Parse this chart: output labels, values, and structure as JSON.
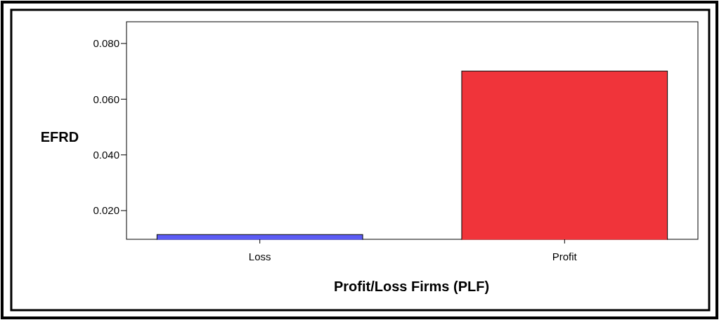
{
  "chart_data": {
    "type": "bar",
    "xlabel": "Profit/Loss Firms (PLF)",
    "ylabel": "EFRD",
    "categories": [
      "Loss",
      "Profit"
    ],
    "values": [
      0.0114,
      0.0701
    ],
    "colors": [
      "#5b5bf5",
      "#f0343a"
    ],
    "ylim": [
      0.0097,
      0.0878
    ],
    "yticks": [
      {
        "value": 0.02,
        "label": "0.020"
      },
      {
        "value": 0.04,
        "label": "0.040"
      },
      {
        "value": 0.06,
        "label": "0.060"
      },
      {
        "value": 0.08,
        "label": "0.080"
      }
    ],
    "grid": false
  }
}
